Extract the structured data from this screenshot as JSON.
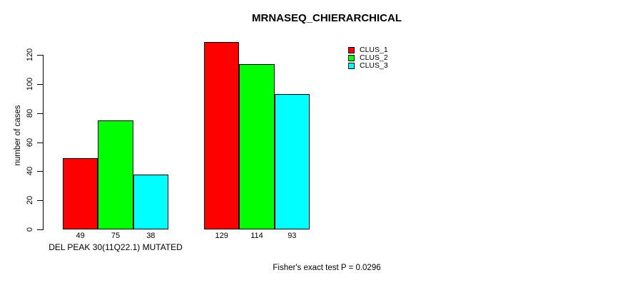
{
  "chart_data": {
    "type": "bar",
    "title": "MRNASEQ_CHIERARCHICAL",
    "ylabel": "number of cases",
    "xlabel": "DEL PEAK 30(11Q22.1) MUTATED",
    "categories": [
      "DEL PEAK 30(11Q22.1) MUTATED",
      ""
    ],
    "series": [
      {
        "name": "CLUS_1",
        "color": "#FF0000",
        "values": [
          49,
          129
        ]
      },
      {
        "name": "CLUS_2",
        "color": "#00FF00",
        "values": [
          75,
          114
        ]
      },
      {
        "name": "CLUS_3",
        "color": "#00FFFF",
        "values": [
          38,
          93
        ]
      }
    ],
    "bar_labels": [
      [
        49,
        75,
        38
      ],
      [
        129,
        114,
        93
      ]
    ],
    "yticks": [
      0,
      20,
      40,
      60,
      80,
      100,
      120
    ],
    "ylim": [
      0,
      129
    ],
    "grid": false,
    "legend": {
      "position": "top-right",
      "entries": [
        {
          "label": "CLUS_1",
          "color": "#FF0000"
        },
        {
          "label": "CLUS_2",
          "color": "#00FF00"
        },
        {
          "label": "CLUS_3",
          "color": "#00FFFF"
        }
      ]
    },
    "annotation": "Fisher's exact test P = 0.0296",
    "bar_border_color": "#000000",
    "background_color": "#FFFFFF"
  }
}
